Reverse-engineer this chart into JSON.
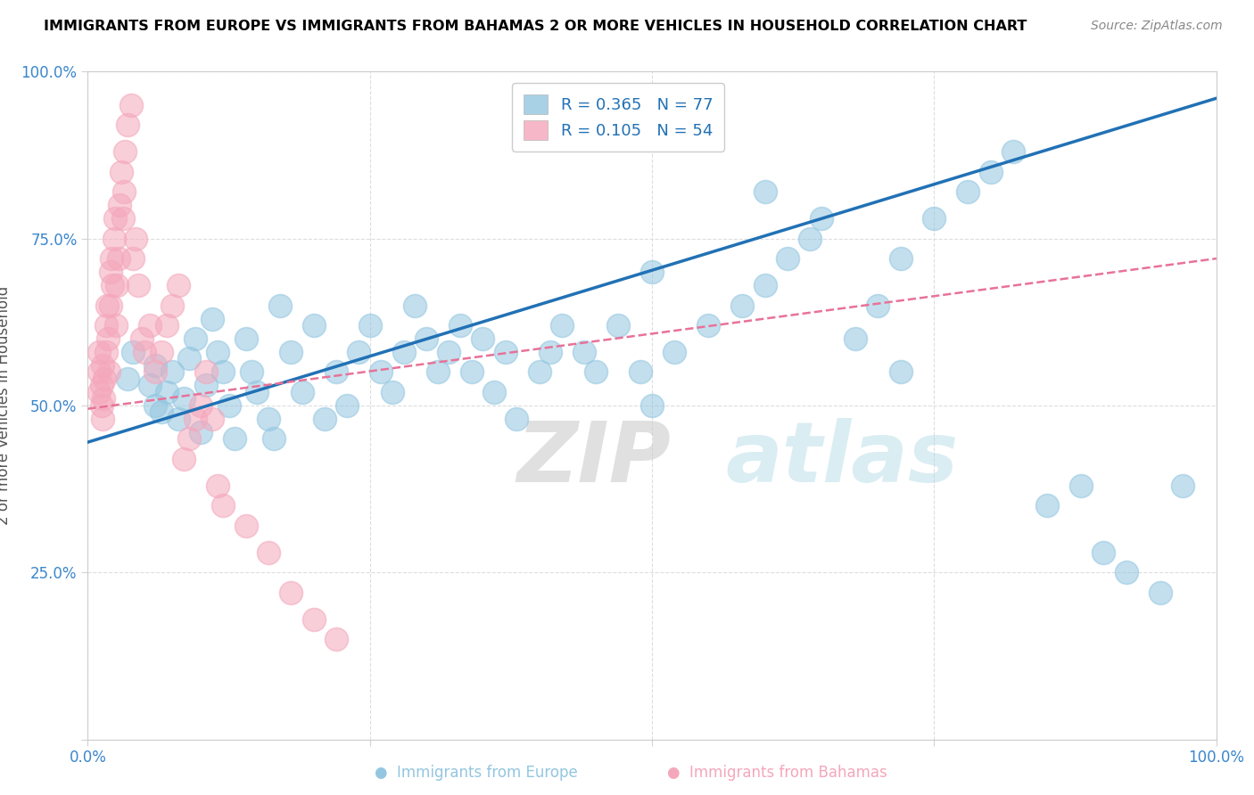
{
  "title": "IMMIGRANTS FROM EUROPE VS IMMIGRANTS FROM BAHAMAS 2 OR MORE VEHICLES IN HOUSEHOLD CORRELATION CHART",
  "source": "Source: ZipAtlas.com",
  "ylabel": "2 or more Vehicles in Household",
  "xlabel_europe": "Immigrants from Europe",
  "xlabel_bahamas": "Immigrants from Bahamas",
  "R_europe": 0.365,
  "N_europe": 77,
  "R_bahamas": 0.105,
  "N_bahamas": 54,
  "watermark_zip": "ZIP",
  "watermark_atlas": "atlas",
  "xlim": [
    0.0,
    1.0
  ],
  "ylim": [
    0.0,
    1.0
  ],
  "color_europe": "#93c6e0",
  "color_bahamas": "#f4a7bb",
  "color_trend_europe": "#2171b5",
  "color_trend_bahamas": "#e87298",
  "europe_trend_x0": 0.0,
  "europe_trend_y0": 0.445,
  "europe_trend_x1": 1.0,
  "europe_trend_y1": 0.96,
  "bahamas_trend_x0": 0.0,
  "bahamas_trend_y0": 0.495,
  "bahamas_trend_x1": 1.0,
  "bahamas_trend_y1": 0.72,
  "europe_x": [
    0.035,
    0.04,
    0.055,
    0.06,
    0.06,
    0.065,
    0.07,
    0.075,
    0.08,
    0.085,
    0.09,
    0.095,
    0.1,
    0.105,
    0.11,
    0.115,
    0.12,
    0.125,
    0.13,
    0.14,
    0.145,
    0.15,
    0.16,
    0.165,
    0.17,
    0.18,
    0.19,
    0.2,
    0.21,
    0.22,
    0.23,
    0.24,
    0.25,
    0.26,
    0.27,
    0.28,
    0.29,
    0.3,
    0.31,
    0.32,
    0.33,
    0.34,
    0.35,
    0.36,
    0.37,
    0.38,
    0.4,
    0.41,
    0.42,
    0.44,
    0.45,
    0.47,
    0.49,
    0.5,
    0.52,
    0.55,
    0.58,
    0.6,
    0.62,
    0.64,
    0.65,
    0.68,
    0.7,
    0.72,
    0.75,
    0.78,
    0.8,
    0.82,
    0.85,
    0.88,
    0.9,
    0.92,
    0.95,
    0.97,
    0.5,
    0.6,
    0.72
  ],
  "europe_y": [
    0.54,
    0.58,
    0.53,
    0.5,
    0.56,
    0.49,
    0.52,
    0.55,
    0.48,
    0.51,
    0.57,
    0.6,
    0.46,
    0.53,
    0.63,
    0.58,
    0.55,
    0.5,
    0.45,
    0.6,
    0.55,
    0.52,
    0.48,
    0.45,
    0.65,
    0.58,
    0.52,
    0.62,
    0.48,
    0.55,
    0.5,
    0.58,
    0.62,
    0.55,
    0.52,
    0.58,
    0.65,
    0.6,
    0.55,
    0.58,
    0.62,
    0.55,
    0.6,
    0.52,
    0.58,
    0.48,
    0.55,
    0.58,
    0.62,
    0.58,
    0.55,
    0.62,
    0.55,
    0.5,
    0.58,
    0.62,
    0.65,
    0.68,
    0.72,
    0.75,
    0.78,
    0.6,
    0.65,
    0.72,
    0.78,
    0.82,
    0.85,
    0.88,
    0.35,
    0.38,
    0.28,
    0.25,
    0.22,
    0.38,
    0.7,
    0.82,
    0.55
  ],
  "bahamas_x": [
    0.01,
    0.01,
    0.01,
    0.012,
    0.012,
    0.013,
    0.013,
    0.014,
    0.015,
    0.016,
    0.016,
    0.017,
    0.018,
    0.019,
    0.02,
    0.02,
    0.021,
    0.022,
    0.023,
    0.024,
    0.025,
    0.026,
    0.027,
    0.028,
    0.03,
    0.031,
    0.032,
    0.033,
    0.035,
    0.038,
    0.04,
    0.042,
    0.045,
    0.048,
    0.05,
    0.055,
    0.06,
    0.065,
    0.07,
    0.075,
    0.08,
    0.085,
    0.09,
    0.095,
    0.1,
    0.105,
    0.11,
    0.115,
    0.12,
    0.14,
    0.16,
    0.18,
    0.2,
    0.22
  ],
  "bahamas_y": [
    0.52,
    0.55,
    0.58,
    0.5,
    0.53,
    0.56,
    0.48,
    0.51,
    0.54,
    0.62,
    0.58,
    0.65,
    0.6,
    0.55,
    0.7,
    0.65,
    0.72,
    0.68,
    0.75,
    0.78,
    0.62,
    0.68,
    0.72,
    0.8,
    0.85,
    0.78,
    0.82,
    0.88,
    0.92,
    0.95,
    0.72,
    0.75,
    0.68,
    0.6,
    0.58,
    0.62,
    0.55,
    0.58,
    0.62,
    0.65,
    0.68,
    0.42,
    0.45,
    0.48,
    0.5,
    0.55,
    0.48,
    0.38,
    0.35,
    0.32,
    0.28,
    0.22,
    0.18,
    0.15
  ]
}
